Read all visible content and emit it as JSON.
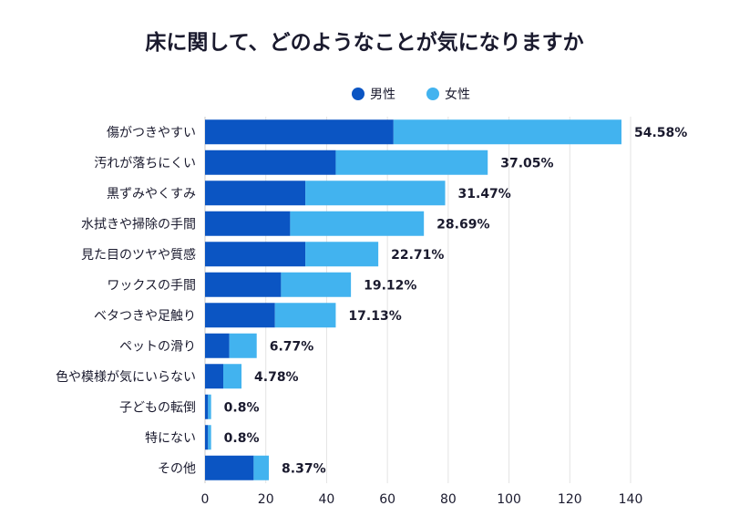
{
  "chart_data": {
    "type": "bar",
    "orientation": "horizontal",
    "stacked": true,
    "title": "床に関して、どのようなことが気になりますか",
    "categories": [
      "傷がつきやすい",
      "汚れが落ちにくい",
      "黒ずみやくすみ",
      "水拭きや掃除の手間",
      "見た目のツヤや質感",
      "ワックスの手間",
      "ベタつきや足触り",
      "ペットの滑り",
      "色や模様が気にいらない",
      "子どもの転倒",
      "特にない",
      "その他"
    ],
    "series": [
      {
        "name": "男性",
        "color": "#0b55c3",
        "values": [
          62,
          43,
          33,
          28,
          33,
          25,
          23,
          8,
          6,
          1,
          1,
          16
        ]
      },
      {
        "name": "女性",
        "color": "#42b3ef",
        "values": [
          75,
          50,
          46,
          44,
          24,
          23,
          20,
          9,
          6,
          1,
          1,
          5
        ]
      }
    ],
    "value_labels": [
      "54.58%",
      "37.05%",
      "31.47%",
      "28.69%",
      "22.71%",
      "19.12%",
      "17.13%",
      "6.77%",
      "4.78%",
      "0.8%",
      "0.8%",
      "8.37%"
    ],
    "x_ticks": [
      "0",
      "20",
      "40",
      "60",
      "80",
      "100",
      "120",
      "140"
    ],
    "xlim": [
      0,
      140
    ],
    "xlabel": "",
    "ylabel": "",
    "grid": true,
    "legend_position": "top-center"
  }
}
